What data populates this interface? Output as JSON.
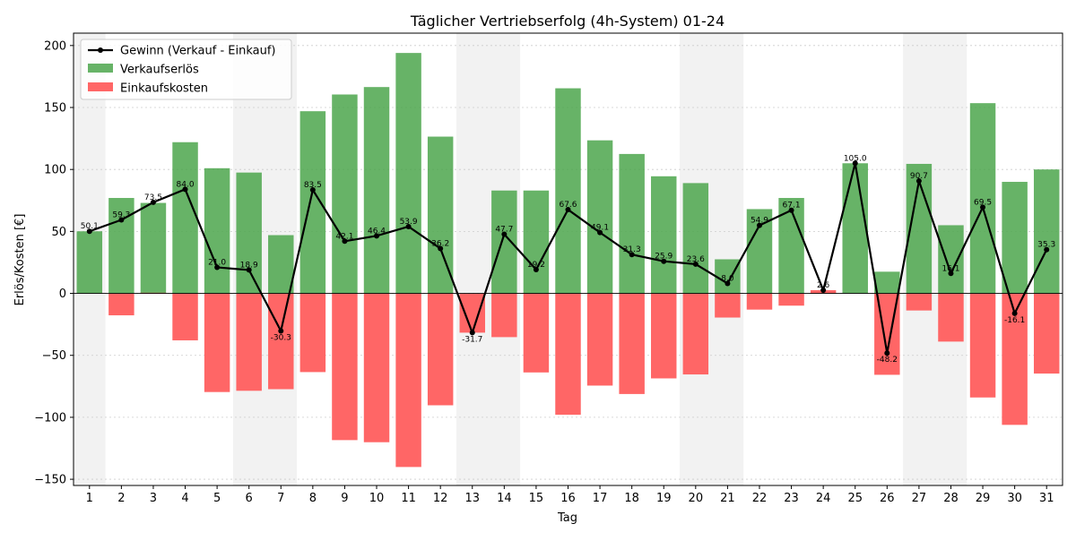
{
  "chart_data": {
    "type": "bar",
    "title": "Täglicher Vertriebserfolg (4h-System) 01-24",
    "xlabel": "Tag",
    "ylabel": "Erlös/Kosten [€]",
    "ylim": [
      -155,
      210
    ],
    "yticks": [
      -150,
      -100,
      -50,
      0,
      50,
      100,
      150,
      200
    ],
    "grid": true,
    "legend_position": "top-left",
    "categories": [
      "1",
      "2",
      "3",
      "4",
      "5",
      "6",
      "7",
      "8",
      "9",
      "10",
      "11",
      "12",
      "13",
      "14",
      "15",
      "16",
      "17",
      "18",
      "19",
      "20",
      "21",
      "22",
      "23",
      "24",
      "25",
      "26",
      "27",
      "28",
      "29",
      "30",
      "31"
    ],
    "shaded_days": [
      1,
      6,
      7,
      13,
      14,
      20,
      21,
      27,
      28
    ],
    "series": [
      {
        "name": "Verkaufserlös",
        "kind": "bar",
        "color": "#4ca64c",
        "values": [
          50.1,
          77.0,
          73.0,
          122.0,
          101.0,
          97.5,
          47.0,
          147.0,
          160.5,
          166.5,
          194.0,
          126.5,
          0,
          83.0,
          83.0,
          165.5,
          123.5,
          112.5,
          94.5,
          89.0,
          27.5,
          68.0,
          77.0,
          0,
          105.0,
          17.5,
          104.5,
          55.0,
          153.5,
          90.0,
          100.0
        ]
      },
      {
        "name": "Einkaufskosten",
        "kind": "bar",
        "color": "#ff6666",
        "values": [
          0,
          -17.7,
          0.5,
          -37.9,
          -79.6,
          -78.6,
          -77.3,
          -63.5,
          -118.4,
          -120.1,
          -140.1,
          -90.3,
          -31.7,
          -35.3,
          -63.8,
          -97.9,
          -74.4,
          -81.2,
          -68.6,
          -65.4,
          -19.5,
          -13.1,
          -9.9,
          2.6,
          0,
          -65.7,
          -13.8,
          -38.9,
          -84.0,
          -106.1,
          -64.7
        ]
      },
      {
        "name": "Gewinn (Verkauf - Einkauf)",
        "kind": "line",
        "color": "#000000",
        "values": [
          50.1,
          59.3,
          73.5,
          84.0,
          21.0,
          18.9,
          -30.3,
          83.5,
          42.1,
          46.4,
          53.9,
          36.2,
          -31.7,
          47.7,
          19.2,
          67.6,
          49.1,
          31.3,
          25.9,
          23.6,
          8.0,
          54.9,
          67.1,
          2.6,
          105.0,
          -48.2,
          90.7,
          16.1,
          69.5,
          -16.1,
          35.3
        ],
        "labels": [
          "50.1",
          "59.3",
          "73.5",
          "84.0",
          "21.0",
          "18.9",
          "-30.3",
          "83.5",
          "42.1",
          "46.4",
          "53.9",
          "36.2",
          "-31.7",
          "47.7",
          "19.2",
          "67.6",
          "49.1",
          "31.3",
          "25.9",
          "23.6",
          "8.0",
          "54.9",
          "67.1",
          "2.6",
          "105.0",
          "-48.2",
          "90.7",
          "16.1",
          "69.5",
          "-16.1",
          "35.3"
        ]
      }
    ]
  }
}
